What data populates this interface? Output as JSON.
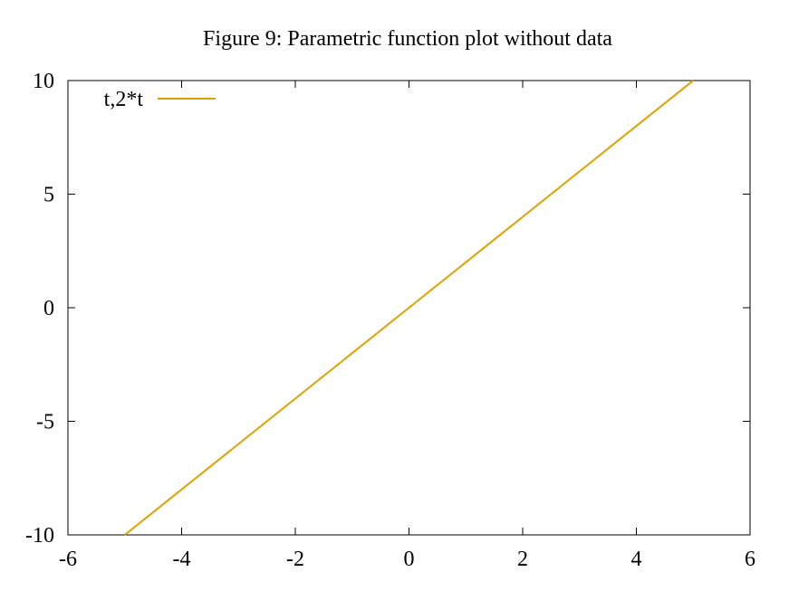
{
  "chart_data": {
    "type": "line",
    "title": "Figure 9: Parametric function plot without data",
    "xlabel": "",
    "ylabel": "",
    "xlim": [
      -6,
      6
    ],
    "ylim": [
      -10,
      10
    ],
    "x_ticks": [
      -6,
      -4,
      -2,
      0,
      2,
      4,
      6
    ],
    "y_ticks": [
      -10,
      -5,
      0,
      5,
      10
    ],
    "x_tick_labels": [
      "-6",
      "-4",
      "-2",
      "0",
      "2",
      "4",
      "6"
    ],
    "y_tick_labels": [
      "-10",
      "-5",
      "0",
      "5",
      "10"
    ],
    "grid": false,
    "legend_position": "top-left",
    "series": [
      {
        "name": "t,2*t",
        "color": "#e0a000",
        "x": [
          -5,
          -4,
          -3,
          -2,
          -1,
          0,
          1,
          2,
          3,
          4,
          5
        ],
        "y": [
          -10,
          -8,
          -6,
          -4,
          -2,
          0,
          2,
          4,
          6,
          8,
          10
        ]
      }
    ]
  }
}
